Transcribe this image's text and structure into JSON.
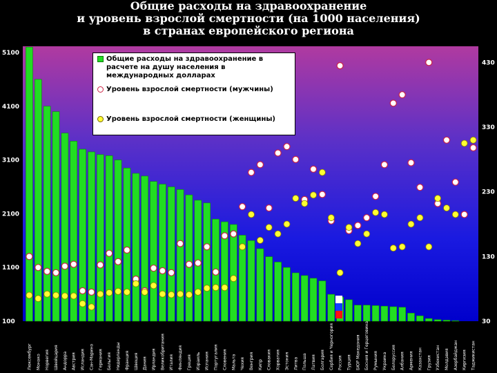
{
  "title_lines": [
    "Общие расходы на здравоохранение",
    "и уровень взрослой смертности (на 1000 населения)",
    "в странах европейского региона"
  ],
  "legend": {
    "spending": "Общие расходы на здравоохранение в расчете на душу населения в международных долларах",
    "men": "Уровень взрослой смертности (мужчины)",
    "women": "Уровень взрослой смертности (женщины)"
  },
  "colors": {
    "bar": "#22dd22",
    "men_marker": "#ffffff",
    "men_marker_edge": "#cc2244",
    "women_marker": "#ffff33"
  },
  "chart_data": {
    "type": "bar",
    "title": "Общие расходы на здравоохранение и уровень взрослой смертности (на 1000 населения) в странах европейского региона",
    "left_axis": {
      "ticks": [
        "5100",
        "4100",
        "3100",
        "2100",
        "1100",
        "100"
      ],
      "range": [
        100,
        5100
      ]
    },
    "right_axis": {
      "ticks": [
        "430",
        "330",
        "230",
        "130",
        "30"
      ],
      "range": [
        30,
        455
      ]
    },
    "categories": [
      "Люксембург",
      "Монако",
      "Норвегия",
      "Швейцария",
      "Андорра",
      "Австрия",
      "Исландия",
      "Сан-Марино",
      "Германия",
      "Бельгия",
      "Нидерланды",
      "Франция",
      "Швеция",
      "Дания",
      "Ирландия",
      "Великобритания",
      "Италия",
      "Финляндия",
      "Греция",
      "Израиль",
      "Испания",
      "Португалия",
      "Словения",
      "Мальта",
      "Чехия",
      "Венгрия",
      "Кипр",
      "Словакия",
      "Хорватия",
      "Эстония",
      "Литва",
      "Польша",
      "Латвия",
      "Болгария",
      "Сербия и Черногория",
      "Россия",
      "Турция",
      "БЮР Македония",
      "Босния и Герцеговина",
      "Румыния",
      "Украина",
      "Белоруссия",
      "Албания",
      "Армения",
      "Казахстан",
      "Грузия",
      "Узбекистан",
      "Молдавия",
      "Азербайджан",
      "Киргизия",
      "Таджикистан"
    ],
    "series": [
      {
        "name": "Общие расходы на здравоохранение в расчете на душу населения в международных долларах",
        "axis": "left",
        "values": [
          5200,
          4600,
          4100,
          4000,
          3600,
          3450,
          3300,
          3250,
          3200,
          3180,
          3100,
          2950,
          2850,
          2800,
          2700,
          2650,
          2600,
          2550,
          2450,
          2350,
          2300,
          2000,
          1950,
          1900,
          1700,
          1600,
          1450,
          1300,
          1200,
          1100,
          1000,
          950,
          900,
          850,
          600,
          550,
          500,
          400,
          400,
          390,
          380,
          370,
          360,
          250,
          200,
          150,
          130,
          120,
          110,
          100,
          100
        ]
      },
      {
        "name": "Уровень взрослой смертности (мужчины)",
        "axis": "right",
        "values": [
          130,
          113,
          107,
          105,
          115,
          118,
          77,
          75,
          117,
          135,
          122,
          140,
          95,
          77,
          112,
          108,
          105,
          150,
          118,
          120,
          145,
          106,
          162,
          165,
          207,
          260,
          272,
          205,
          290,
          300,
          280,
          218,
          265,
          226,
          185,
          425,
          170,
          178,
          190,
          223,
          272,
          367,
          380,
          275,
          237,
          430,
          212,
          310,
          245,
          195,
          298
        ]
      },
      {
        "name": "Уровень взрослой смертности (женщины)",
        "axis": "right",
        "values": [
          70,
          65,
          72,
          70,
          69,
          69,
          57,
          52,
          72,
          74,
          76,
          75,
          88,
          75,
          85,
          72,
          71,
          72,
          71,
          75,
          81,
          82,
          82,
          96,
          145,
          195,
          155,
          175,
          165,
          180,
          220,
          212,
          225,
          260,
          190,
          105,
          175,
          150,
          165,
          198,
          195,
          143,
          145,
          180,
          190,
          145,
          220,
          205,
          195,
          305,
          310
        ]
      }
    ],
    "grid": false,
    "legend_position": "top-left"
  }
}
